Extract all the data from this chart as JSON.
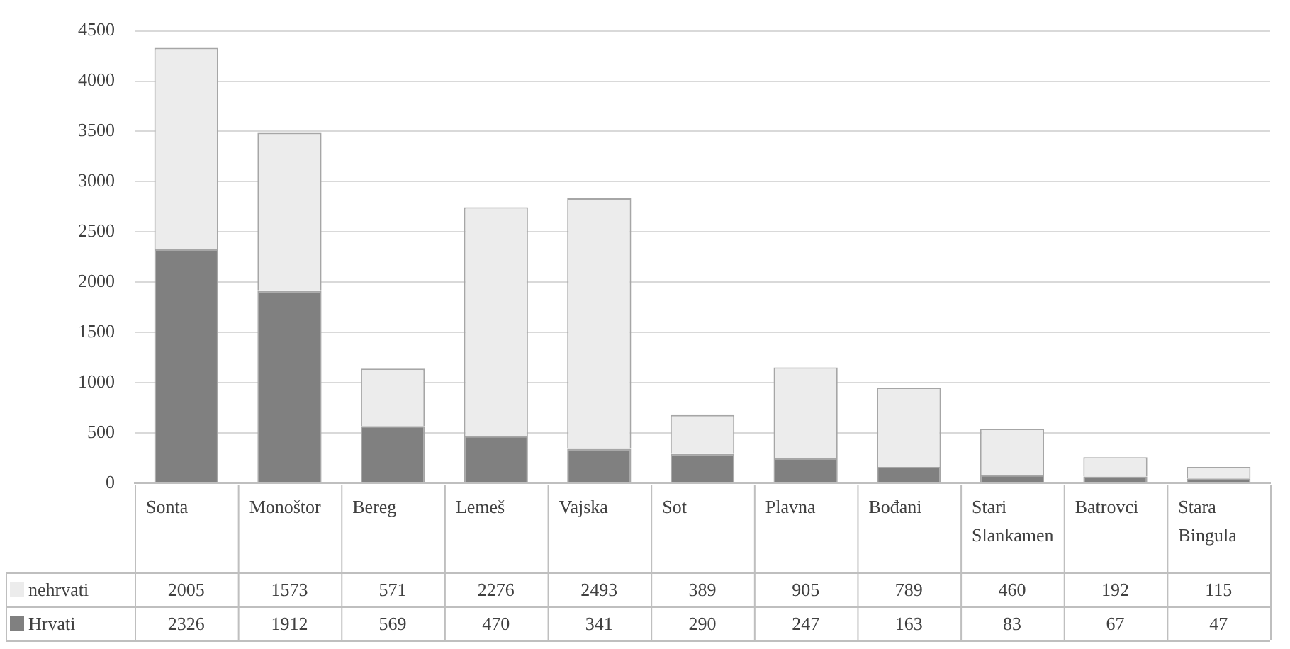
{
  "chart_data": {
    "type": "bar",
    "stacked": true,
    "categories": [
      "Sonta",
      "Monoštor",
      "Bereg",
      "Lemeš",
      "Vajska",
      "Sot",
      "Plavna",
      "Bođani",
      "Stari Slankamen",
      "Batrovci",
      "Stara Bingula"
    ],
    "series": [
      {
        "name": "Hrvati",
        "color": "#808080",
        "values": [
          2326,
          1912,
          569,
          470,
          341,
          290,
          247,
          163,
          83,
          67,
          47
        ]
      },
      {
        "name": "nehrvati",
        "color": "#ececec",
        "values": [
          2005,
          1573,
          571,
          2276,
          2493,
          389,
          905,
          789,
          460,
          192,
          115
        ]
      }
    ],
    "ylim": [
      0,
      4500
    ],
    "yticks": [
      0,
      500,
      1000,
      1500,
      2000,
      2500,
      3000,
      3500,
      4000,
      4500
    ],
    "grid": "y",
    "legend": "bottom",
    "data_labels": true
  }
}
